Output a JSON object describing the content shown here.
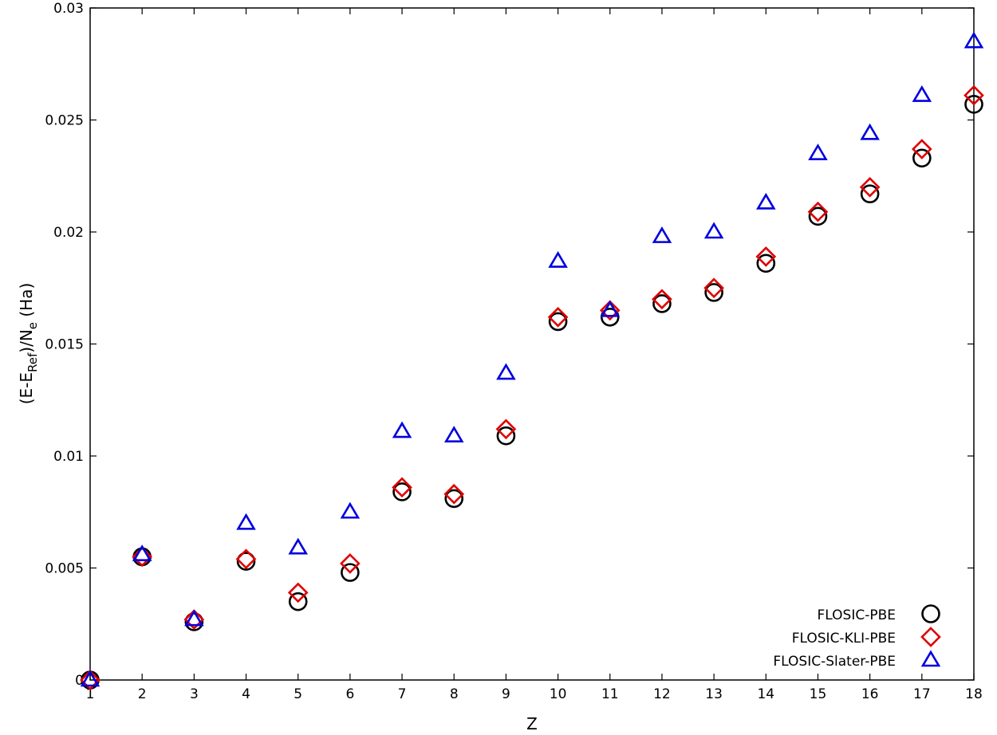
{
  "chart_data": {
    "type": "scatter",
    "title": "",
    "xlabel": "Z",
    "ylabel": {
      "prefix": "(E-E",
      "sub1": "Ref",
      "mid": ")/N",
      "sub2": "e",
      "suffix": " (Ha)"
    },
    "xlim": [
      1,
      18
    ],
    "ylim": [
      0,
      0.03
    ],
    "x_ticks": [
      "1",
      "2",
      "3",
      "4",
      "5",
      "6",
      "7",
      "8",
      "9",
      "10",
      "11",
      "12",
      "13",
      "14",
      "15",
      "16",
      "17",
      "18"
    ],
    "y_ticks": [
      {
        "value": 0,
        "label": "0"
      },
      {
        "value": 0.005,
        "label": "0.005"
      },
      {
        "value": 0.01,
        "label": "0.01"
      },
      {
        "value": 0.015,
        "label": "0.015"
      },
      {
        "value": 0.02,
        "label": "0.02"
      },
      {
        "value": 0.025,
        "label": "0.025"
      },
      {
        "value": 0.03,
        "label": "0.03"
      }
    ],
    "grid": false,
    "legend_position": "bottom-right",
    "x": [
      1,
      2,
      3,
      4,
      5,
      6,
      7,
      8,
      9,
      10,
      11,
      12,
      13,
      14,
      15,
      16,
      17,
      18
    ],
    "series": [
      {
        "name": "FLOSIC-PBE",
        "marker": "circle",
        "color": "#000000",
        "values": [
          0.0,
          0.0055,
          0.0026,
          0.0053,
          0.0035,
          0.0048,
          0.0084,
          0.0081,
          0.0109,
          0.016,
          0.0162,
          0.0168,
          0.0173,
          0.0186,
          0.0207,
          0.0217,
          0.0233,
          0.0257
        ]
      },
      {
        "name": "FLOSIC-KLI-PBE",
        "marker": "diamond",
        "color": "#e00000",
        "values": [
          0.0,
          0.0055,
          0.0027,
          0.0054,
          0.0039,
          0.0052,
          0.0086,
          0.0083,
          0.0112,
          0.0162,
          0.0165,
          0.017,
          0.0175,
          0.0189,
          0.0209,
          0.022,
          0.0237,
          0.0261
        ]
      },
      {
        "name": "FLOSIC-Slater-PBE",
        "marker": "triangle",
        "color": "#0000e0",
        "values": [
          0.0,
          0.0056,
          0.0027,
          0.007,
          0.0059,
          0.0075,
          0.0111,
          0.0109,
          0.0137,
          0.0187,
          0.0165,
          0.0198,
          0.02,
          0.0213,
          0.0235,
          0.0244,
          0.0261,
          0.0285
        ]
      }
    ]
  }
}
